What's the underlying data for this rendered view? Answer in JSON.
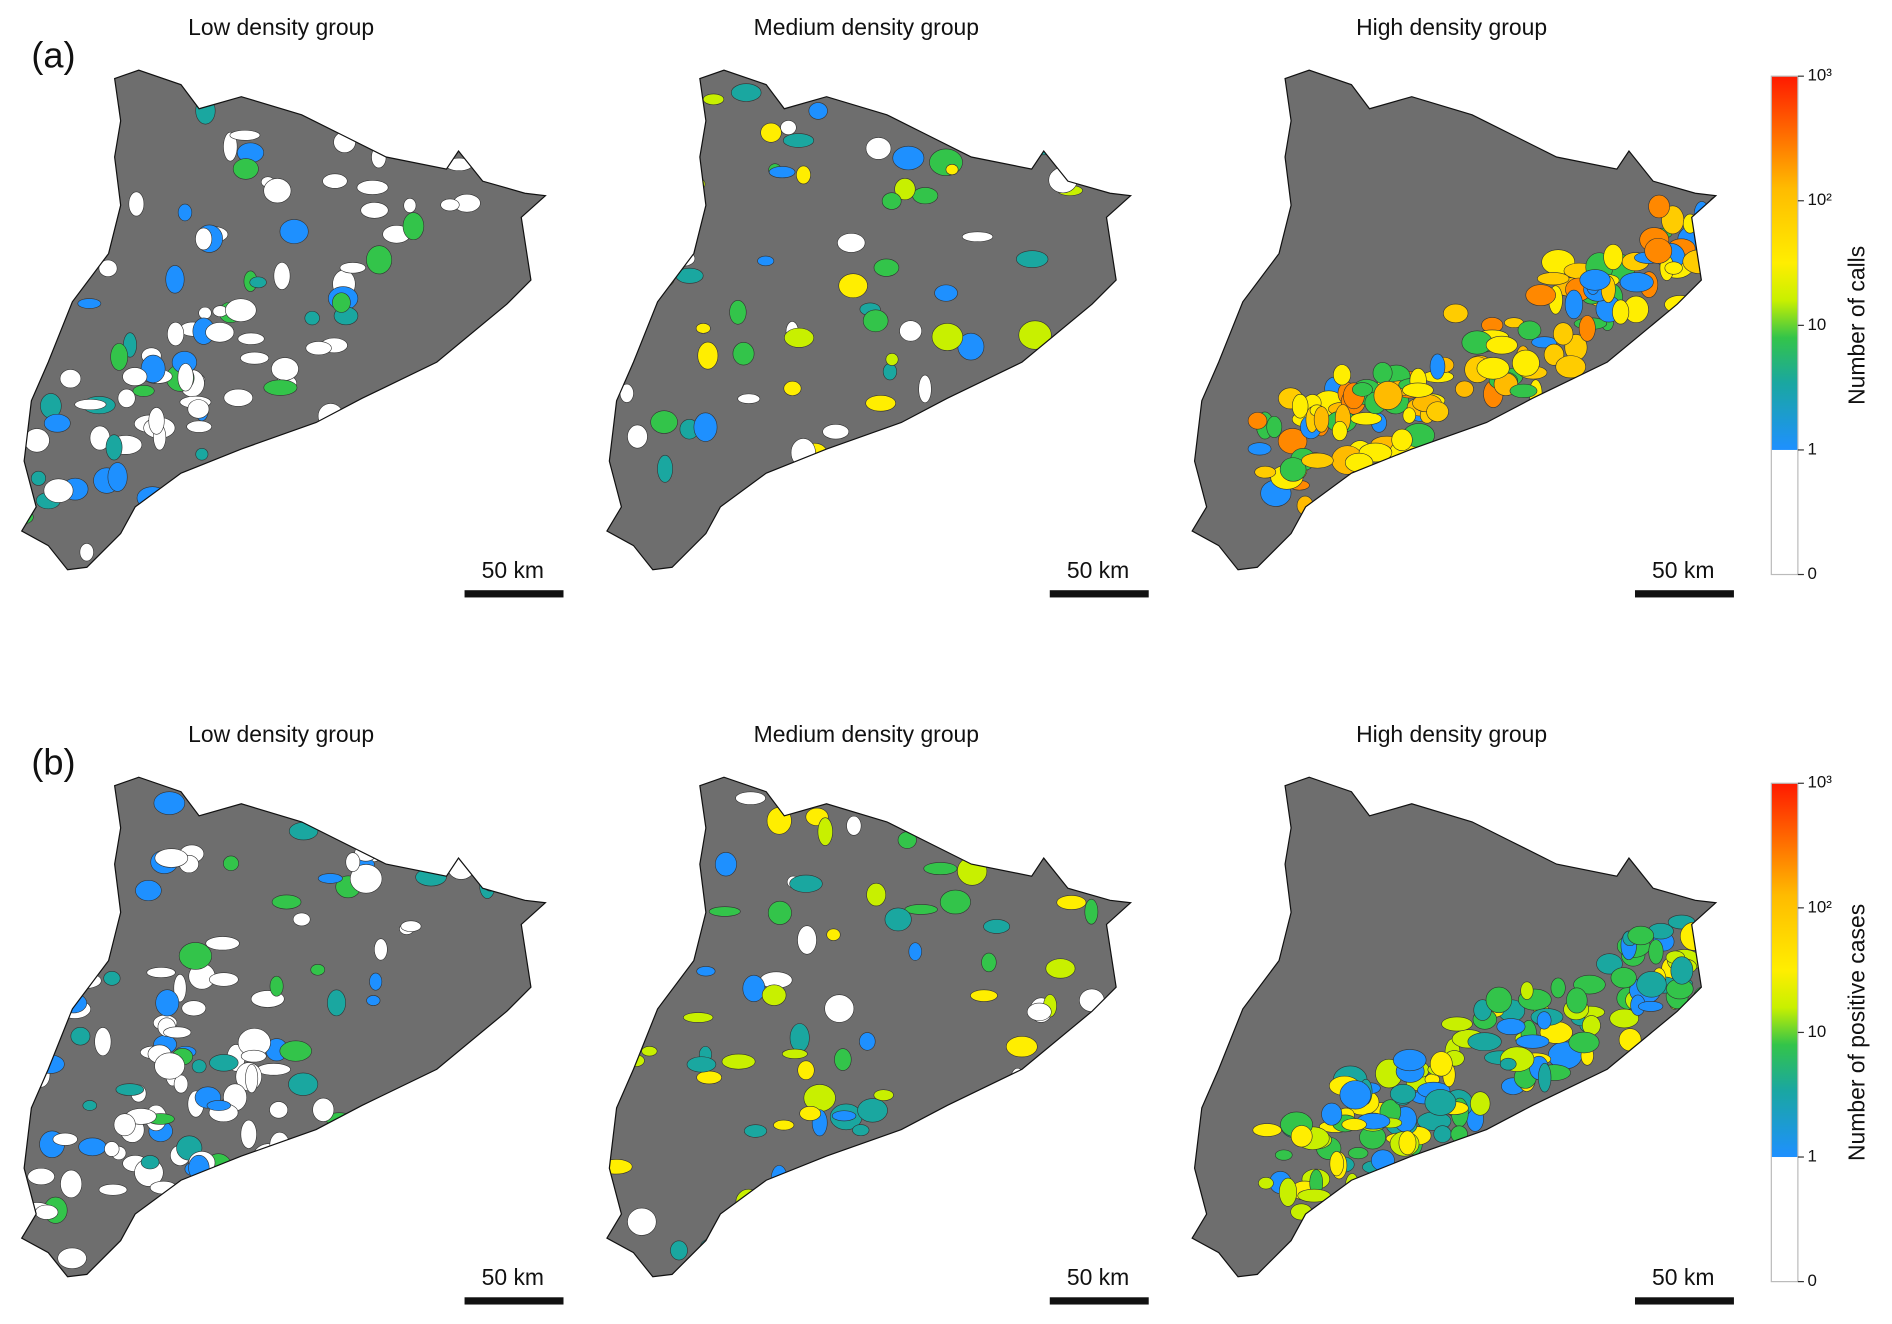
{
  "panels": [
    {
      "label": "(a)",
      "maps": [
        {
          "title": "Low density group",
          "scale_bar": "50 km"
        },
        {
          "title": "Medium density group",
          "scale_bar": "50 km"
        },
        {
          "title": "High density group",
          "scale_bar": "50 km"
        }
      ],
      "colorbar": {
        "label": "Number of calls",
        "ticks": [
          0,
          1,
          10,
          {
            "value": 100,
            "label": "10²"
          },
          {
            "value": 1000,
            "label": "10³"
          }
        ]
      }
    },
    {
      "label": "(b)",
      "maps": [
        {
          "title": "Low density group",
          "scale_bar": "50 km"
        },
        {
          "title": "Medium density group",
          "scale_bar": "50 km"
        },
        {
          "title": "High density group",
          "scale_bar": "50 km"
        }
      ],
      "colorbar": {
        "label": "Number of positive cases",
        "ticks": [
          0,
          1,
          10,
          {
            "value": 100,
            "label": "10²"
          },
          {
            "value": 1000,
            "label": "10³"
          }
        ]
      }
    }
  ]
}
